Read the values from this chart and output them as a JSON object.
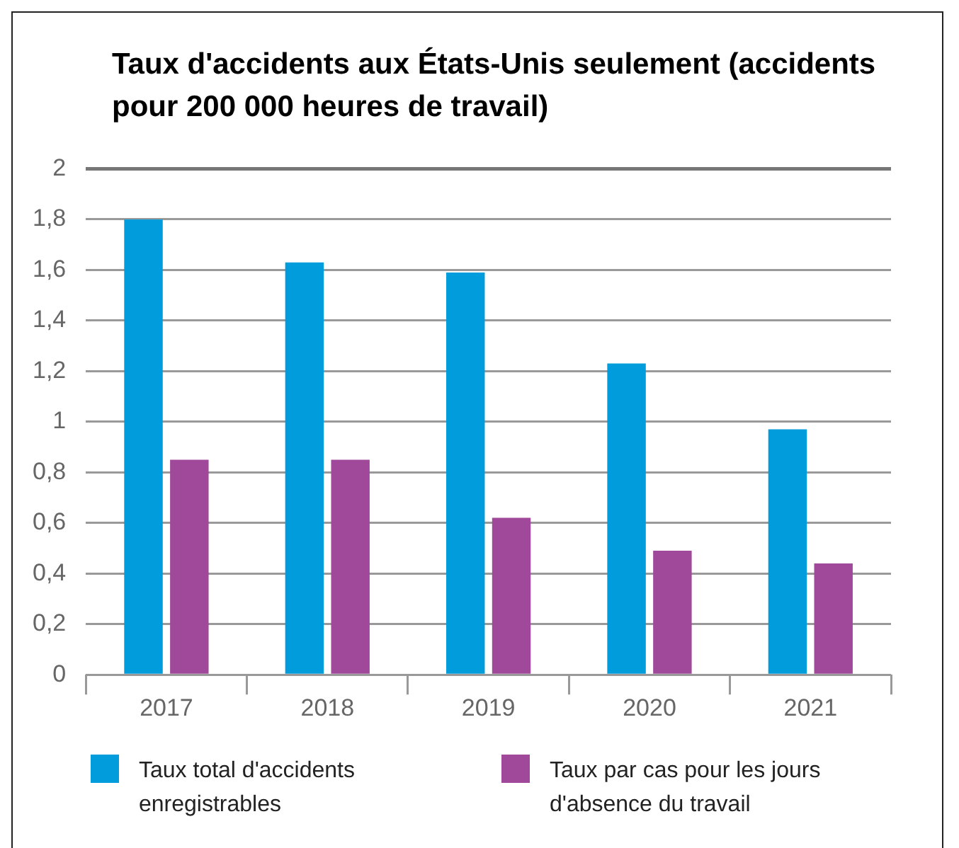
{
  "chart_data": {
    "type": "bar",
    "title": "Taux d'accidents aux États-Unis seulement (accidents pour 200 000 heures de travail)",
    "categories": [
      "2017",
      "2018",
      "2019",
      "2020",
      "2021"
    ],
    "series": [
      {
        "name": "Taux total d'accidents enregistrables",
        "color": "#009cdb",
        "values": [
          1.8,
          1.63,
          1.59,
          1.23,
          0.97
        ]
      },
      {
        "name": "Taux par cas pour les jours d'absence du travail",
        "color": "#a04899",
        "values": [
          0.85,
          0.85,
          0.62,
          0.49,
          0.44
        ]
      }
    ],
    "ylim": [
      0,
      2
    ],
    "yticks": [
      {
        "value": 0,
        "label": "0"
      },
      {
        "value": 0.2,
        "label": "0,2"
      },
      {
        "value": 0.4,
        "label": "0,4"
      },
      {
        "value": 0.6,
        "label": "0,6"
      },
      {
        "value": 0.8,
        "label": "0,8"
      },
      {
        "value": 1,
        "label": "1"
      },
      {
        "value": 1.2,
        "label": "1,2"
      },
      {
        "value": 1.4,
        "label": "1,4"
      },
      {
        "value": 1.6,
        "label": "1,6"
      },
      {
        "value": 1.8,
        "label": "1,8"
      },
      {
        "value": 2,
        "label": "2"
      }
    ],
    "grid": "y",
    "legend": "bottom"
  }
}
